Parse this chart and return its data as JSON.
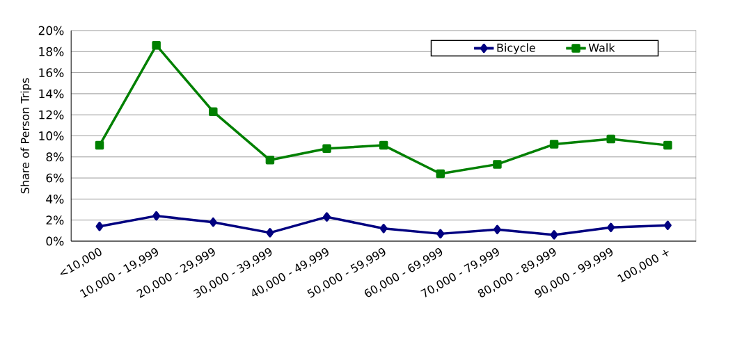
{
  "chart_data": {
    "type": "line",
    "ylabel": "Share of Person Trips",
    "categories": [
      "<10,000",
      "10,000 - 19,999",
      "20,000 - 29,999",
      "30,000 - 39,999",
      "40,000 - 49,999",
      "50,000 - 59,999",
      "60,000 - 69,999",
      "70,000 - 79,999",
      "80,000 - 89,999",
      "90,000 - 99,999",
      "100,000 +"
    ],
    "series": [
      {
        "name": "Bicycle",
        "color": "#000080",
        "marker": "diamond",
        "values": [
          1.4,
          2.4,
          1.8,
          0.8,
          2.3,
          1.2,
          0.7,
          1.1,
          0.6,
          1.3,
          1.5
        ]
      },
      {
        "name": "Walk",
        "color": "#008000",
        "marker": "square",
        "values": [
          9.1,
          18.6,
          12.3,
          7.7,
          8.8,
          9.1,
          6.4,
          7.3,
          9.2,
          9.7,
          9.1
        ]
      }
    ],
    "ylim": [
      0,
      20
    ],
    "yticks": [
      {
        "value": 0,
        "label": "0%"
      },
      {
        "value": 2,
        "label": "2%"
      },
      {
        "value": 4,
        "label": "4%"
      },
      {
        "value": 6,
        "label": "6%"
      },
      {
        "value": 8,
        "label": "8%"
      },
      {
        "value": 10,
        "label": "10%"
      },
      {
        "value": 12,
        "label": "12%"
      },
      {
        "value": 14,
        "label": "14%"
      },
      {
        "value": 16,
        "label": "16%"
      },
      {
        "value": 18,
        "label": "18%"
      },
      {
        "value": 20,
        "label": "20%"
      }
    ],
    "grid": "y",
    "legend": "top right",
    "line_style": "solid"
  }
}
